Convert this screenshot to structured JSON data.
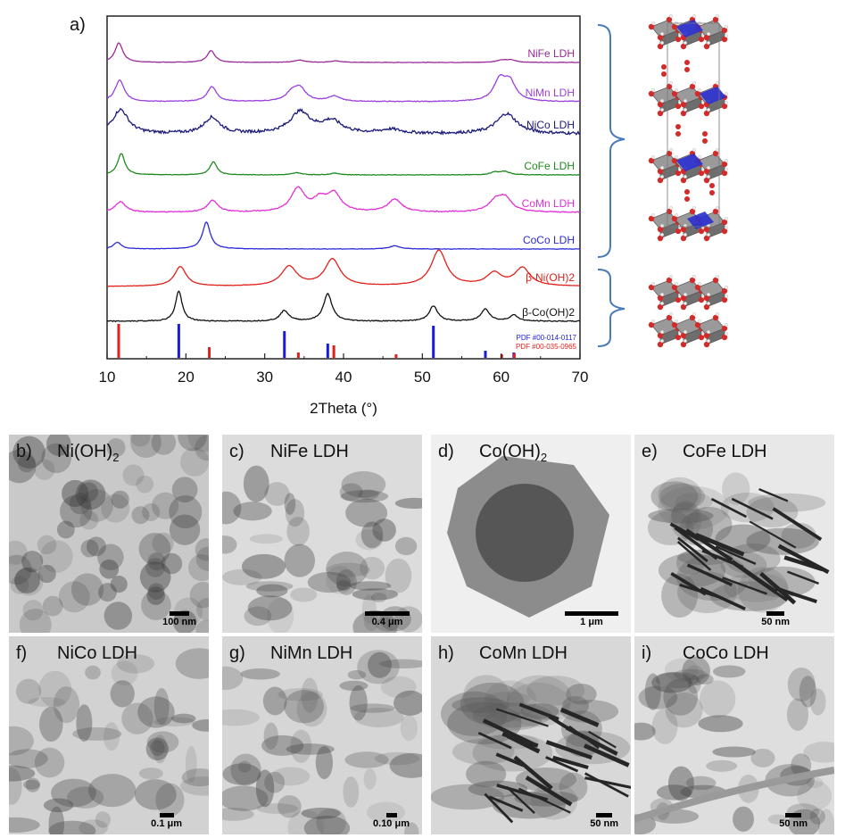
{
  "panel_a": {
    "label": "a)",
    "xlabel": "2Theta (°)",
    "x_ticks": [
      "10",
      "20",
      "30",
      "40",
      "50",
      "60",
      "70"
    ],
    "pdf_refs": [
      {
        "text": "PDF #00-014-0117",
        "color": "#1a1adf"
      },
      {
        "text": "PDF #00-035-0965",
        "color": "#e0201a"
      }
    ]
  },
  "chart_data": {
    "type": "line",
    "xlabel": "2Theta (°)",
    "ylabel": "",
    "xlim": [
      10,
      70
    ],
    "y_ticks_shown": false,
    "series": [
      {
        "name": "NiFe LDH",
        "color": "#9a2a9a",
        "peaks": [
          11.5,
          23.2,
          34.4,
          39.0,
          60.0,
          61.2
        ]
      },
      {
        "name": "NiMn LDH",
        "color": "#9b3fe0",
        "peaks": [
          11.6,
          23.3,
          33.5,
          34.5,
          38.8,
          59.8,
          61.1
        ]
      },
      {
        "name": "NiCo LDH",
        "color": "#1a1a7a",
        "peaks": [
          11.7,
          23.3,
          34.5,
          38.5,
          46.0,
          60.7
        ]
      },
      {
        "name": "CoFe LDH",
        "color": "#1e8a1e",
        "peaks": [
          11.8,
          23.5,
          34.1,
          38.9,
          59.2,
          60.5
        ]
      },
      {
        "name": "CoMn LDH",
        "color": "#e030d8",
        "peaks": [
          11.7,
          23.4,
          34.2,
          37.0,
          38.8,
          46.5,
          59.3,
          60.5
        ]
      },
      {
        "name": "CoCo LDH",
        "color": "#2a2ad8",
        "peaks": [
          11.3,
          22.6,
          46.5
        ]
      },
      {
        "name": "β-Ni(OH)2",
        "color": "#e0201a",
        "peaks": [
          19.3,
          33.1,
          38.6,
          52.1,
          59.1,
          62.7
        ]
      },
      {
        "name": "β-Co(OH)2",
        "color": "#111111",
        "peaks": [
          19.1,
          32.5,
          38.0,
          51.4,
          58.0,
          61.6
        ]
      }
    ],
    "reference_sticks": [
      {
        "name": "PDF #00-014-0117",
        "color": "#1a1adf",
        "x": [
          19.1,
          32.5,
          38.0,
          51.4,
          58.0,
          61.6
        ]
      },
      {
        "name": "PDF #00-035-0965",
        "color": "#e0201a",
        "x": [
          11.3,
          22.8,
          34.1,
          38.6,
          46.5,
          59.9,
          61.5
        ]
      }
    ]
  },
  "tem_panels": [
    {
      "label": "b)",
      "name": "Ni(OH)",
      "sub": "2",
      "scale": "100 nm"
    },
    {
      "label": "c)",
      "name": "NiFe LDH",
      "sub": "",
      "scale": "0.4 μm"
    },
    {
      "label": "d)",
      "name": "Co(OH)",
      "sub": "2",
      "scale": "1 μm"
    },
    {
      "label": "e)",
      "name": "CoFe LDH",
      "sub": "",
      "scale": "50 nm"
    },
    {
      "label": "f)",
      "name": "NiCo LDH",
      "sub": "",
      "scale": "0.1 μm"
    },
    {
      "label": "g)",
      "name": "NiMn LDH",
      "sub": "",
      "scale": "0.10 μm"
    },
    {
      "label": "h)",
      "name": "CoMn LDH",
      "sub": "",
      "scale": "50 nm"
    },
    {
      "label": "i)",
      "name": "CoCo LDH",
      "sub": "",
      "scale": "50 nm"
    }
  ]
}
